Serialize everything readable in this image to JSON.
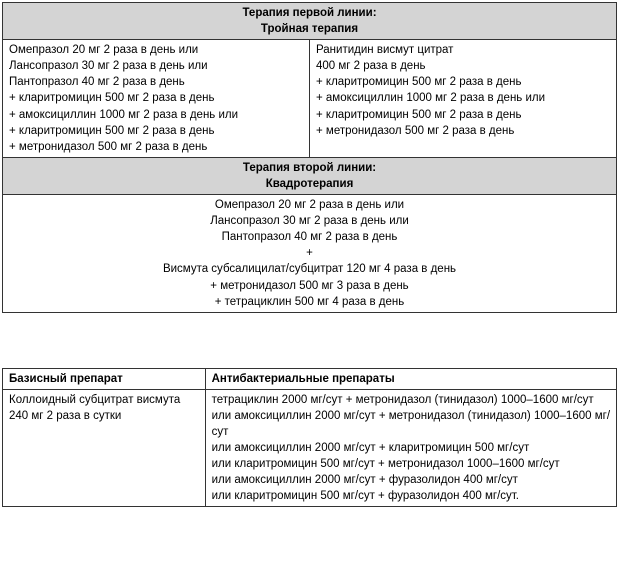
{
  "table1": {
    "header1_line1": "Терапия первой линии:",
    "header1_line2": "Тройная терапия",
    "left_block": "Омепразол 20 мг 2 раза в день или\nЛансопразол 30 мг 2 раза в день или\nПантопразол 40 мг 2 раза в день\n+ кларитромицин 500 мг 2 раза в день\n+ амоксициллин 1000 мг 2 раза в день или\n+ кларитромицин 500 мг 2 раза в день\n+ метронидазол 500 мг 2 раза в день",
    "right_block": "Ранитидин висмут цитрат\n400 мг 2 раза в день\n+ кларитромицин 500 мг 2 раза в день\n+ амоксициллин 1000 мг 2 раза в день или\n+ кларитромицин 500 мг 2 раза в день\n+ метронидазол 500 мг 2 раза в день",
    "header2_line1": "Терапия второй линии:",
    "header2_line2": "Квадротерапия",
    "bottom_block": "Омепразол 20 мг 2 раза в день или\nЛансопразол 30 мг 2 раза в день или\nПантопразол 40 мг 2 раза в день\n+\nВисмута субсалицилат/субцитрат 120 мг 4 раза в день\n+ метронидазол 500 мг 3 раза в день\n+ тетрациклин 500 мг 4 раза в день"
  },
  "table2": {
    "col1_header": "Базисный препарат",
    "col2_header": "Антибактериальные препараты",
    "col1_body": "Коллоидный субцитрат висмута\n240 мг 2 раза в сутки",
    "col2_body": "тетрациклин 2000 мг/сут + метронидазол (тинидазол) 1000–1600 мг/сут\nили амоксициллин 2000 мг/сут + метронидазол (тинидазол) 1000–1600 мг/сут\nили амоксициллин 2000 мг/сут + кларитромицин 500 мг/сут\nили кларитромицин 500 мг/сут + метронидазол 1000–1600 мг/сут\nили амоксициллин 2000 мг/сут + фуразолидон 400 мг/сут\nили кларитромицин 500 мг/сут + фуразолидон 400 мг/сут."
  }
}
